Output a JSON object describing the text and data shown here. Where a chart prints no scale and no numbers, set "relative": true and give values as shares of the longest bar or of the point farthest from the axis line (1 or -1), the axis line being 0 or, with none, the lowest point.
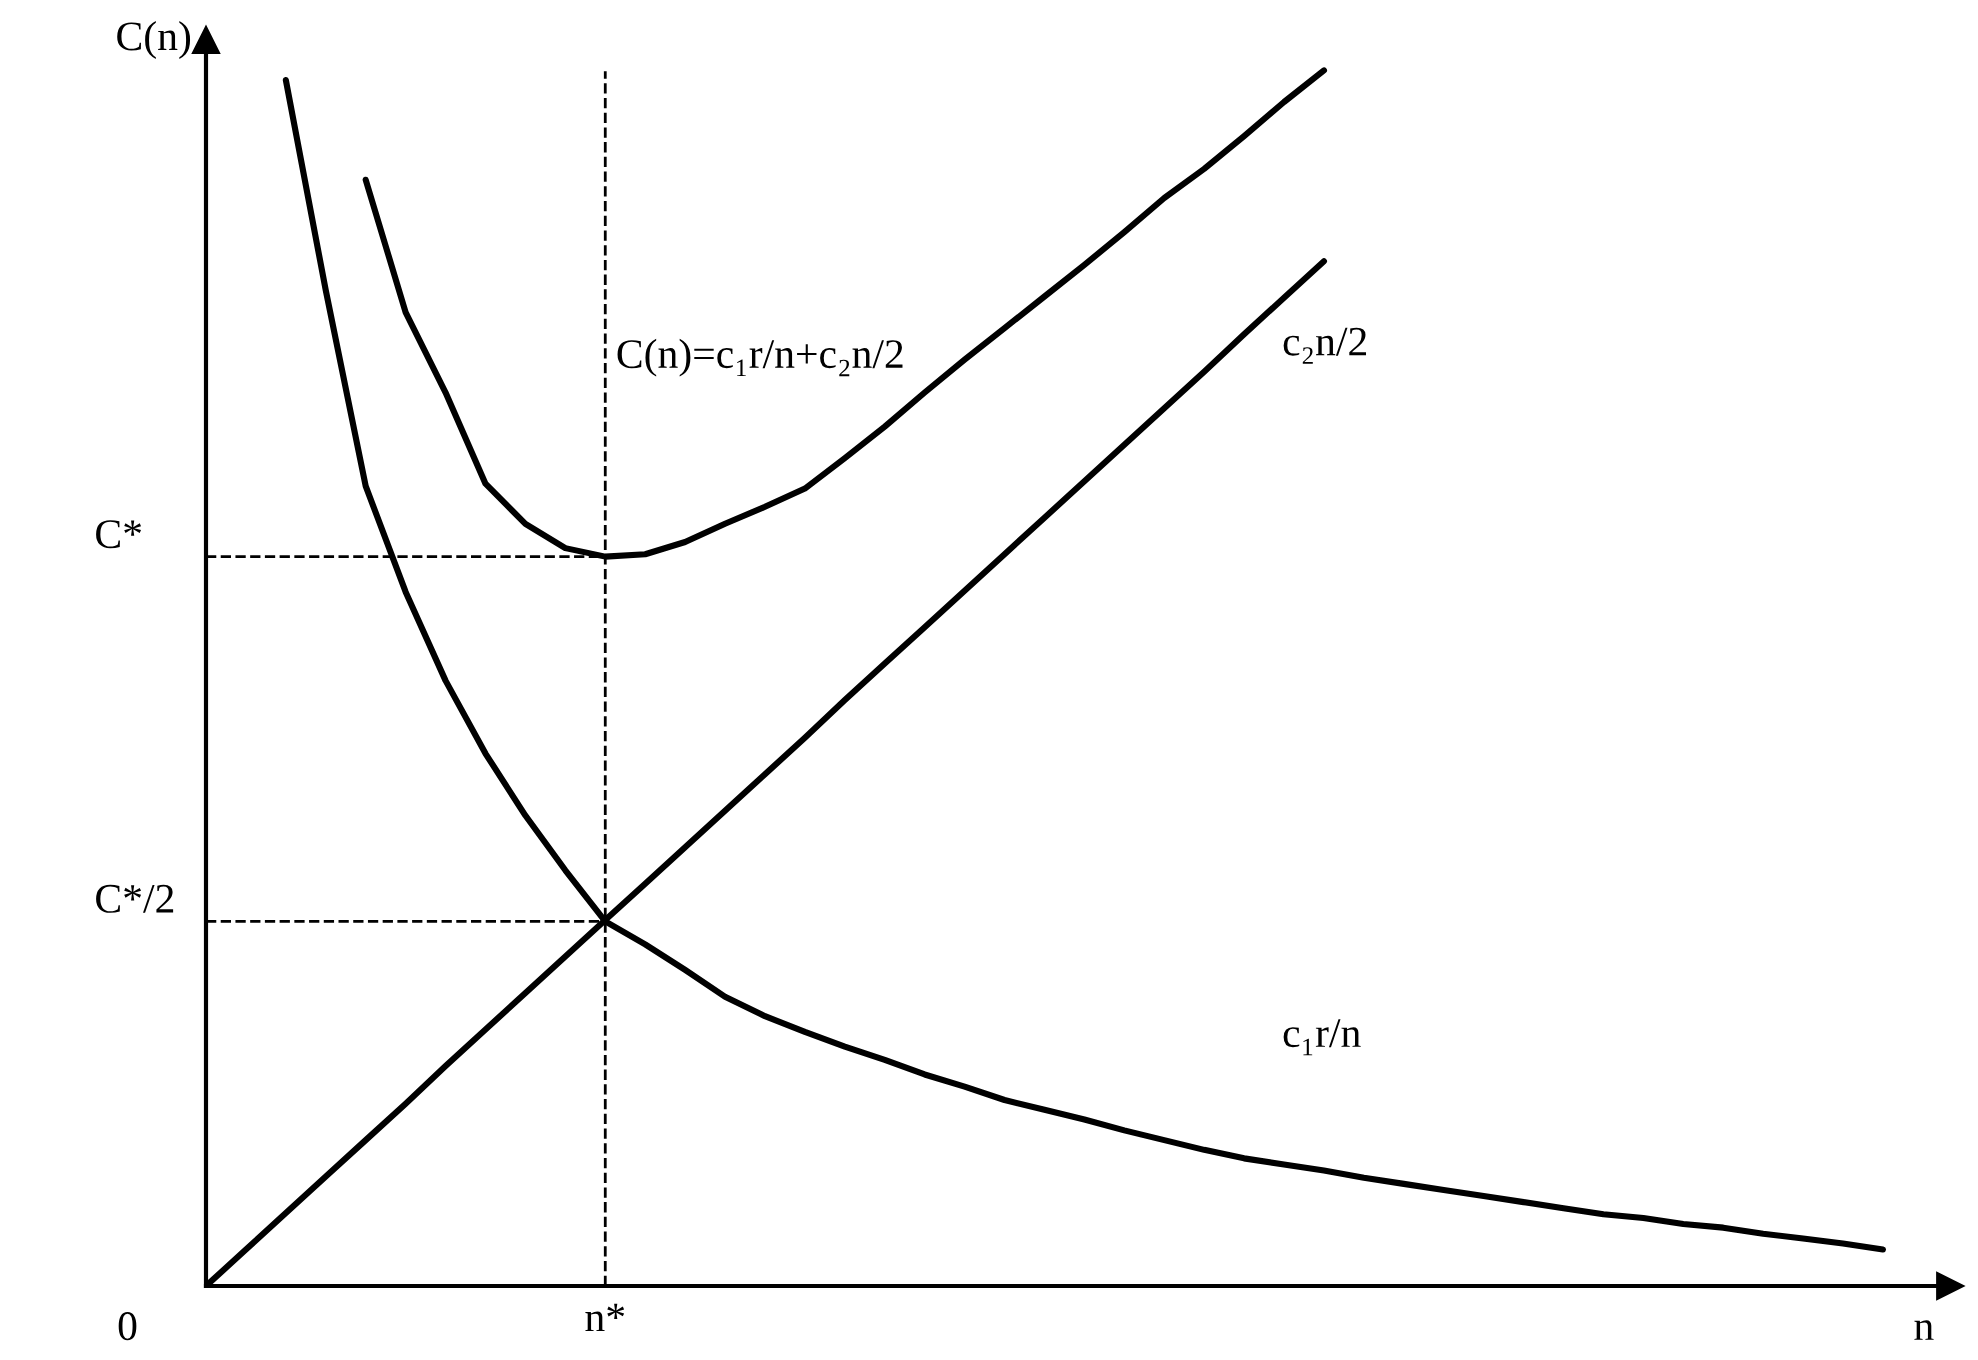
{
  "chart_data": {
    "type": "line",
    "relative": true,
    "xlabel": "n",
    "ylabel": "C(n)",
    "legend": false,
    "line_style": "solid",
    "marker": "none",
    "annotations": [
      "0",
      "n*"
    ],
    "categories": [
      null,
      null,
      null,
      null,
      null,
      null,
      null,
      null,
      null,
      null,
      null,
      null,
      null,
      null,
      null,
      null,
      null,
      null,
      null,
      null,
      null,
      null,
      null,
      null,
      null,
      null,
      null,
      null,
      null,
      null,
      null,
      null,
      null,
      null,
      null,
      null,
      null,
      null,
      null,
      null,
      null,
      null,
      null
    ],
    "series": [
      {
        "name": "C(n)=c₁r/n+c₂n/2",
        "color": "#000000",
        "values": [
          null,
          null,
          null,
          null,
          0.91,
          0.801,
          0.735,
          0.66,
          0.627,
          0.607,
          0.6,
          0.602,
          0.612,
          0.627,
          0.641,
          0.656,
          0.681,
          0.707,
          0.735,
          0.762,
          0.788,
          0.814,
          0.84,
          0.867,
          0.895,
          0.919,
          0.946,
          0.974,
          1,
          null,
          null,
          null,
          null,
          null,
          null,
          null,
          null,
          null,
          null,
          null,
          null,
          null,
          null
        ]
      },
      {
        "name": "c₂n/2",
        "color": "#000000",
        "values": [
          0,
          0.03,
          0.06,
          0.09,
          0.12,
          0.15,
          0.181,
          0.211,
          0.241,
          0.271,
          0.301,
          0.331,
          0.361,
          0.391,
          0.421,
          0.451,
          0.482,
          0.512,
          0.542,
          0.572,
          0.602,
          0.632,
          0.662,
          0.692,
          0.722,
          0.752,
          0.783,
          0.813,
          0.843,
          null,
          null,
          null,
          null,
          null,
          null,
          null,
          null,
          null,
          null,
          null,
          null,
          null,
          null
        ]
      },
      {
        "name": "c₁r/n",
        "color": "#000000",
        "values": [
          null,
          null,
          0.992,
          0.819,
          0.658,
          0.571,
          0.498,
          0.438,
          0.387,
          0.342,
          0.3,
          0.281,
          0.26,
          0.238,
          0.222,
          0.209,
          0.197,
          0.186,
          0.174,
          0.164,
          0.153,
          0.145,
          0.137,
          0.128,
          0.12,
          0.112,
          0.105,
          0.1,
          0.095,
          0.089,
          0.084,
          0.079,
          0.074,
          0.069,
          0.064,
          0.059,
          0.056,
          0.051,
          0.048,
          0.043,
          0.039,
          0.035,
          0.03
        ]
      }
    ],
    "ref_lines": [
      {
        "axis": "y",
        "value": 0.6,
        "label": "C*",
        "line_style": "dashed",
        "color": "#000000"
      },
      {
        "axis": "y",
        "value": 0.3,
        "label": "C*/2",
        "line_style": "dashed",
        "color": "#000000"
      }
    ]
  }
}
